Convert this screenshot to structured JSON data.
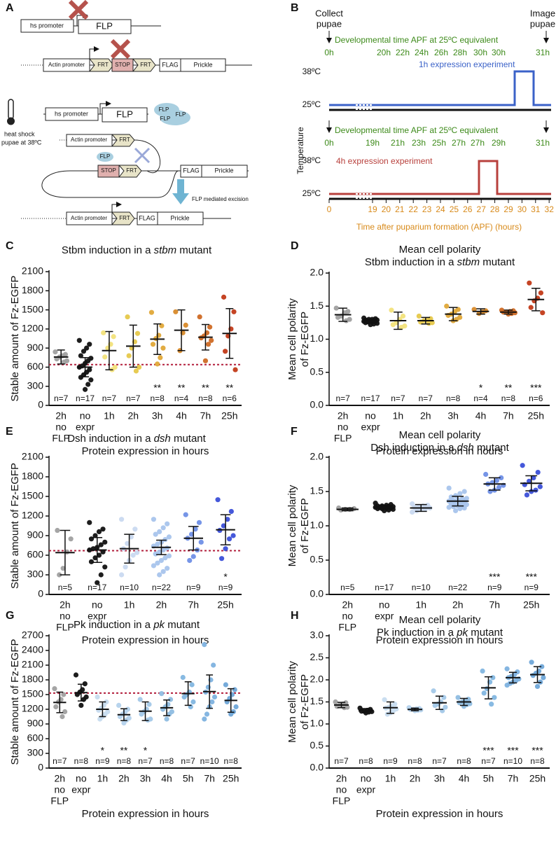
{
  "panels": {
    "A": {
      "label": "A",
      "row1": {
        "promoter": "hs promoter",
        "gene": "FLP"
      },
      "row2": {
        "promoter": "Actin promoter",
        "frt1": "FRT",
        "stop": "STOP",
        "frt2": "FRT",
        "flag": "FLAG",
        "gene": "Prickle"
      },
      "heat_shock": [
        "heat shock",
        "pupae at 38ºC"
      ],
      "row3": {
        "promoter": "hs promoter",
        "gene": "FLP",
        "proteins": [
          "FLP",
          "FLP",
          "FLP"
        ]
      },
      "row4": {
        "promoter": "Actin promoter",
        "frt1": "FRT",
        "flp": "FLP",
        "stop": "STOP",
        "frt2": "FRT",
        "flag": "FLAG",
        "gene": "Prickle"
      },
      "excision": "FLP mediated excision",
      "row5": {
        "promoter": "Actin promoter",
        "frt": "FRT",
        "flag": "FLAG",
        "gene": "Prickle"
      }
    },
    "B": {
      "label": "B",
      "collect": [
        "Collect",
        "pupae"
      ],
      "image": [
        "Image",
        "pupae"
      ],
      "dev_time_label_1": "Developmental time APF at 25ºC equivalent",
      "dev_ticks_1": [
        "0h",
        "20h",
        "22h",
        "24h",
        "26h",
        "28h",
        "30h",
        "30h",
        "31h"
      ],
      "exp_1": "1h expression experiment",
      "temp_high_1": "38ºC",
      "temp_low_1": "25ºC",
      "y_label": "Temperature",
      "dev_time_label_2": "Developmental time APF at 25ºC equivalent",
      "dev_ticks_2": [
        "0h",
        "19h",
        "21h",
        "23h",
        "25h",
        "27h",
        "27h",
        "29h",
        "31h"
      ],
      "exp_2": "4h expression experiment",
      "temp_high_2": "38ºC",
      "temp_low_2": "25ºC",
      "x_ticks": [
        "0",
        "19",
        "20",
        "21",
        "22",
        "23",
        "24",
        "25",
        "26",
        "27",
        "28",
        "29",
        "30",
        "31",
        "32"
      ],
      "x_label": "Time after puparium formation (APF) (hours)"
    }
  },
  "chart_data": [
    {
      "panel": "C",
      "type": "dotplot",
      "title": [
        [
          "Stbm induction in a ",
          "stbm",
          " mutant"
        ]
      ],
      "ylabel": [
        "Stable amount of Fz-EGFP"
      ],
      "xlabel": "Protein expression in hours",
      "categories": [
        [
          "2h",
          "no",
          "FLP"
        ],
        [
          "no",
          "expr"
        ],
        [
          "1h"
        ],
        [
          "2h"
        ],
        [
          "3h"
        ],
        [
          "4h"
        ],
        [
          "7h"
        ],
        [
          "25h"
        ]
      ],
      "colors": [
        "#a0a0a0",
        "#111111",
        "#f2e27a",
        "#e6c84a",
        "#e0a838",
        "#d88a2a",
        "#cf6a24",
        "#c23a18"
      ],
      "points": [
        [
          840,
          800,
          780,
          760,
          730,
          700,
          680
        ],
        [
          1020,
          960,
          900,
          850,
          780,
          740,
          700,
          660,
          620,
          600,
          560,
          520,
          480,
          440,
          400,
          330,
          250
        ],
        [
          1140,
          1080,
          960,
          900,
          760,
          600,
          560
        ],
        [
          1390,
          1130,
          1000,
          900,
          780,
          600,
          540
        ],
        [
          1460,
          1250,
          1100,
          1050,
          960,
          900,
          750,
          650
        ],
        [
          1470,
          1260,
          1140,
          860
        ],
        [
          1390,
          1230,
          1140,
          1090,
          1060,
          1020,
          960,
          700
        ],
        [
          1700,
          1470,
          1200,
          1090,
          850,
          560
        ]
      ],
      "means": [
        760,
        600,
        860,
        930,
        1040,
        1180,
        1070,
        1130
      ],
      "sd": [
        110,
        150,
        300,
        330,
        240,
        320,
        200,
        390
      ],
      "n_labels": [
        "n=7",
        "n=17",
        "n=7",
        "n=7",
        "n=8",
        "n=4",
        "n=8",
        "n=6"
      ],
      "stars": [
        null,
        null,
        null,
        null,
        "**",
        "**",
        "**",
        "**"
      ],
      "threshold": 640,
      "threshold_color": "#b21e3b",
      "ylim": [
        0,
        2100
      ],
      "yticks": [
        0,
        300,
        600,
        900,
        1200,
        1500,
        1800,
        2100
      ]
    },
    {
      "panel": "D",
      "type": "dotplot",
      "title": [
        [
          "Mean cell polarity"
        ],
        [
          "Stbm induction in a ",
          "stbm",
          " mutant"
        ]
      ],
      "ylabel": [
        "Mean cell polarity",
        "of Fz-EGFP"
      ],
      "xlabel": "Protein expression in hours",
      "categories": [
        [
          "2h",
          "no",
          "FLP"
        ],
        [
          "no",
          "expr"
        ],
        [
          "1h"
        ],
        [
          "2h"
        ],
        [
          "3h"
        ],
        [
          "4h"
        ],
        [
          "7h"
        ],
        [
          "25h"
        ]
      ],
      "colors": [
        "#a0a0a0",
        "#111111",
        "#f2e27a",
        "#e6c84a",
        "#e0a838",
        "#d88a2a",
        "#cf6a24",
        "#c23a18"
      ],
      "points": [
        [
          1.47,
          1.42,
          1.4,
          1.35,
          1.33,
          1.3,
          1.28
        ],
        [
          1.32,
          1.31,
          1.3,
          1.3,
          1.29,
          1.29,
          1.28,
          1.28,
          1.27,
          1.27,
          1.27,
          1.26,
          1.26,
          1.25,
          1.24,
          1.23,
          1.22
        ],
        [
          1.44,
          1.35,
          1.3,
          1.25,
          1.22,
          1.2,
          1.18
        ],
        [
          1.35,
          1.31,
          1.29,
          1.28,
          1.26,
          1.25,
          1.24
        ],
        [
          1.5,
          1.45,
          1.42,
          1.38,
          1.36,
          1.33,
          1.3,
          1.28
        ],
        [
          1.45,
          1.43,
          1.41,
          1.39
        ],
        [
          1.44,
          1.43,
          1.42,
          1.41,
          1.41,
          1.4,
          1.39,
          1.38
        ],
        [
          1.85,
          1.7,
          1.62,
          1.58,
          1.48,
          1.4
        ]
      ],
      "means": [
        1.37,
        1.27,
        1.28,
        1.28,
        1.38,
        1.42,
        1.41,
        1.6
      ],
      "sd": [
        0.1,
        0.03,
        0.13,
        0.05,
        0.1,
        0.04,
        0.03,
        0.17
      ],
      "n_labels": [
        "n=7",
        "n=17",
        "n=7",
        "n=7",
        "n=8",
        "n=4",
        "n=8",
        "n=6"
      ],
      "stars": [
        null,
        null,
        null,
        null,
        null,
        "*",
        "**",
        "***"
      ],
      "ylim": [
        0,
        2
      ],
      "yticks": [
        {
          "value": 0,
          "label": "0.0"
        },
        0.5,
        {
          "value": 1,
          "label": "1.0"
        },
        1.5,
        {
          "value": 2,
          "label": "2.0"
        }
      ]
    },
    {
      "panel": "E",
      "type": "dotplot",
      "title": [
        [
          "Dsh induction in a ",
          "dsh",
          " mutant"
        ]
      ],
      "ylabel": [
        "Stable amount of Fz-EGFP"
      ],
      "xlabel": "Protein expression in hours",
      "categories": [
        [
          "2h",
          "no",
          "FLP"
        ],
        [
          "no",
          "expr"
        ],
        [
          "1h"
        ],
        [
          "2h"
        ],
        [
          "7h"
        ],
        [
          "25h"
        ]
      ],
      "colors": [
        "#a0a0a0",
        "#111111",
        "#c9d9f0",
        "#a8c4ec",
        "#6f8fe6",
        "#3b4fd8"
      ],
      "points": [
        [
          980,
          850,
          650,
          400,
          300
        ],
        [
          1100,
          1000,
          960,
          900,
          850,
          800,
          760,
          720,
          700,
          680,
          650,
          600,
          560,
          500,
          420,
          300,
          180
        ],
        [
          1150,
          1000,
          880,
          780,
          700,
          640,
          600,
          520,
          420,
          300
        ],
        [
          1150,
          1080,
          1020,
          960,
          920,
          880,
          840,
          800,
          770,
          740,
          710,
          680,
          650,
          620,
          590,
          560,
          520,
          480,
          440,
          400,
          350,
          300
        ],
        [
          1220,
          1100,
          1000,
          920,
          860,
          800,
          680,
          580,
          520
        ],
        [
          1450,
          1270,
          1150,
          1050,
          980,
          900,
          850,
          700,
          550
        ]
      ],
      "means": [
        640,
        680,
        700,
        720,
        860,
        990
      ],
      "sd": [
        340,
        190,
        220,
        110,
        180,
        230
      ],
      "n_labels": [
        "n=5",
        "n=17",
        "n=10",
        "n=22",
        "n=9",
        "n=9"
      ],
      "stars": [
        null,
        null,
        null,
        null,
        null,
        "*"
      ],
      "threshold": 670,
      "threshold_color": "#b21e3b",
      "ylim": [
        0,
        2100
      ],
      "yticks": [
        0,
        300,
        600,
        900,
        1200,
        1500,
        1800,
        2100
      ]
    },
    {
      "panel": "F",
      "type": "dotplot",
      "title": [
        [
          "Mean cell polarity"
        ],
        [
          "Dsh induction in a ",
          "dsh",
          " mutant"
        ]
      ],
      "ylabel": [
        "Mean cell polarity",
        "of Fz-EGFP"
      ],
      "xlabel": "Protein expression in hours",
      "categories": [
        [
          "2h",
          "no",
          "FLP"
        ],
        [
          "no",
          "expr"
        ],
        [
          "1h"
        ],
        [
          "2h"
        ],
        [
          "7h"
        ],
        [
          "25h"
        ]
      ],
      "colors": [
        "#a0a0a0",
        "#111111",
        "#c9d9f0",
        "#a8c4ec",
        "#6f8fe6",
        "#3b4fd8"
      ],
      "points": [
        [
          1.26,
          1.25,
          1.24,
          1.24,
          1.23
        ],
        [
          1.33,
          1.31,
          1.3,
          1.29,
          1.29,
          1.28,
          1.28,
          1.27,
          1.27,
          1.27,
          1.26,
          1.26,
          1.25,
          1.25,
          1.24,
          1.23,
          1.22
        ],
        [
          1.32,
          1.3,
          1.29,
          1.28,
          1.27,
          1.26,
          1.25,
          1.24,
          1.22,
          1.2
        ],
        [
          1.55,
          1.5,
          1.47,
          1.44,
          1.42,
          1.4,
          1.39,
          1.38,
          1.37,
          1.36,
          1.35,
          1.34,
          1.33,
          1.32,
          1.31,
          1.3,
          1.29,
          1.28,
          1.27,
          1.26,
          1.25,
          1.22
        ],
        [
          1.75,
          1.7,
          1.66,
          1.63,
          1.61,
          1.59,
          1.56,
          1.52,
          1.5
        ],
        [
          1.88,
          1.78,
          1.7,
          1.65,
          1.6,
          1.57,
          1.52,
          1.5,
          1.45
        ]
      ],
      "means": [
        1.24,
        1.27,
        1.26,
        1.36,
        1.61,
        1.62
      ],
      "sd": [
        0.02,
        0.03,
        0.05,
        0.07,
        0.09,
        0.11
      ],
      "n_labels": [
        "n=5",
        "n=17",
        "n=10",
        "n=22",
        "n=9",
        "n=9"
      ],
      "stars": [
        null,
        null,
        null,
        null,
        "***",
        "***"
      ],
      "ylim": [
        0,
        2
      ],
      "yticks": [
        {
          "value": 0,
          "label": "0.0"
        },
        0.5,
        {
          "value": 1,
          "label": "1.0"
        },
        1.5,
        {
          "value": 2,
          "label": "2.0"
        }
      ]
    },
    {
      "panel": "G",
      "type": "dotplot",
      "title": [
        [
          "Pk induction in a ",
          "pk",
          " mutant"
        ]
      ],
      "ylabel": [
        "Stable amount of Fz-EGFP"
      ],
      "xlabel": "Protein expression in hours",
      "categories": [
        [
          "2h",
          "no",
          "FLP"
        ],
        [
          "no",
          "expr"
        ],
        [
          "1h"
        ],
        [
          "2h"
        ],
        [
          "3h"
        ],
        [
          "4h"
        ],
        [
          "5h"
        ],
        [
          "7h"
        ],
        [
          "25h"
        ]
      ],
      "colors": [
        "#a0a0a0",
        "#111111",
        "#c7dcef",
        "#b4d2ec",
        "#a3c8e8",
        "#8fbde2",
        "#82b6e0",
        "#7eb2df",
        "#6fa6d8"
      ],
      "points": [
        [
          1620,
          1500,
          1400,
          1350,
          1250,
          1150,
          1050
        ],
        [
          1900,
          1720,
          1600,
          1550,
          1500,
          1450,
          1400,
          1280
        ],
        [
          1450,
          1350,
          1280,
          1220,
          1180,
          1150,
          1100,
          1050,
          1000
        ],
        [
          1280,
          1200,
          1150,
          1100,
          1050,
          1020,
          980,
          920
        ],
        [
          1400,
          1300,
          1200,
          1150,
          1100,
          1000,
          980
        ],
        [
          1520,
          1400,
          1300,
          1250,
          1200,
          1150,
          1100,
          1000
        ],
        [
          1850,
          1700,
          1550,
          1500,
          1450,
          1350,
          1250
        ],
        [
          2520,
          2100,
          1800,
          1650,
          1550,
          1450,
          1350,
          1250,
          1100,
          1000
        ],
        [
          1700,
          1600,
          1500,
          1420,
          1350,
          1250,
          1150,
          1100
        ]
      ],
      "means": [
        1340,
        1540,
        1200,
        1090,
        1160,
        1230,
        1520,
        1560,
        1380
      ],
      "sd": [
        210,
        170,
        150,
        120,
        190,
        160,
        240,
        340,
        240
      ],
      "n_labels": [
        "n=7",
        "n=8",
        "n=9",
        "n=8",
        "n=7",
        "n=8",
        "n=7",
        "n=10",
        "n=8"
      ],
      "stars": [
        null,
        null,
        "*",
        "**",
        "*",
        null,
        null,
        null,
        null
      ],
      "threshold": 1530,
      "threshold_color": "#b21e3b",
      "ylim": [
        0,
        2700
      ],
      "yticks": [
        0,
        300,
        600,
        900,
        1200,
        1500,
        1800,
        2100,
        2400,
        2700
      ]
    },
    {
      "panel": "H",
      "type": "dotplot",
      "title": [
        [
          "Mean cell polarity"
        ],
        [
          "Pk induction in a ",
          "pk",
          " mutant"
        ]
      ],
      "ylabel": [
        "Mean cell polarity",
        "of Fz-EGFP"
      ],
      "xlabel": "Protein expression in hours",
      "categories": [
        [
          "2h",
          "no",
          "FLP"
        ],
        [
          "no",
          "expr"
        ],
        [
          "1h"
        ],
        [
          "2h"
        ],
        [
          "3h"
        ],
        [
          "4h"
        ],
        [
          "5h"
        ],
        [
          "7h"
        ],
        [
          "25h"
        ]
      ],
      "colors": [
        "#a0a0a0",
        "#111111",
        "#c7dcef",
        "#b4d2ec",
        "#a3c8e8",
        "#8fbde2",
        "#82b6e0",
        "#7eb2df",
        "#6fa6d8"
      ],
      "points": [
        [
          1.5,
          1.48,
          1.45,
          1.43,
          1.4,
          1.38,
          1.37
        ],
        [
          1.36,
          1.33,
          1.31,
          1.3,
          1.29,
          1.28,
          1.27,
          1.25
        ],
        [
          1.55,
          1.45,
          1.4,
          1.38,
          1.36,
          1.34,
          1.3,
          1.25,
          1.22
        ],
        [
          1.37,
          1.35,
          1.34,
          1.33,
          1.33,
          1.32,
          1.31,
          1.3
        ],
        [
          1.75,
          1.6,
          1.5,
          1.45,
          1.42,
          1.38,
          1.3
        ],
        [
          1.6,
          1.56,
          1.52,
          1.5,
          1.48,
          1.46,
          1.44,
          1.4
        ],
        [
          2.2,
          2.05,
          1.95,
          1.8,
          1.7,
          1.6,
          1.45
        ],
        [
          2.25,
          2.18,
          2.12,
          2.08,
          2.05,
          2.02,
          1.98,
          1.95,
          1.92,
          1.88
        ],
        [
          2.4,
          2.3,
          2.2,
          2.15,
          2.1,
          2.05,
          1.95,
          1.85
        ]
      ],
      "means": [
        1.43,
        1.3,
        1.37,
        1.33,
        1.48,
        1.5,
        1.82,
        2.05,
        2.12
      ],
      "sd": [
        0.06,
        0.05,
        0.13,
        0.03,
        0.15,
        0.08,
        0.25,
        0.12,
        0.18
      ],
      "n_labels": [
        "n=7",
        "n=8",
        "n=9",
        "n=8",
        "n=7",
        "n=8",
        "n=7",
        "n=10",
        "n=8"
      ],
      "stars": [
        null,
        null,
        null,
        null,
        null,
        null,
        "***",
        "***",
        "***"
      ],
      "ylim": [
        0,
        3
      ],
      "yticks": [
        {
          "value": 0,
          "label": "0.0"
        },
        0.5,
        {
          "value": 1,
          "label": "1.0"
        },
        1.5,
        {
          "value": 2,
          "label": "2.0"
        },
        2.5,
        {
          "value": 3,
          "label": "3.0"
        }
      ]
    }
  ]
}
